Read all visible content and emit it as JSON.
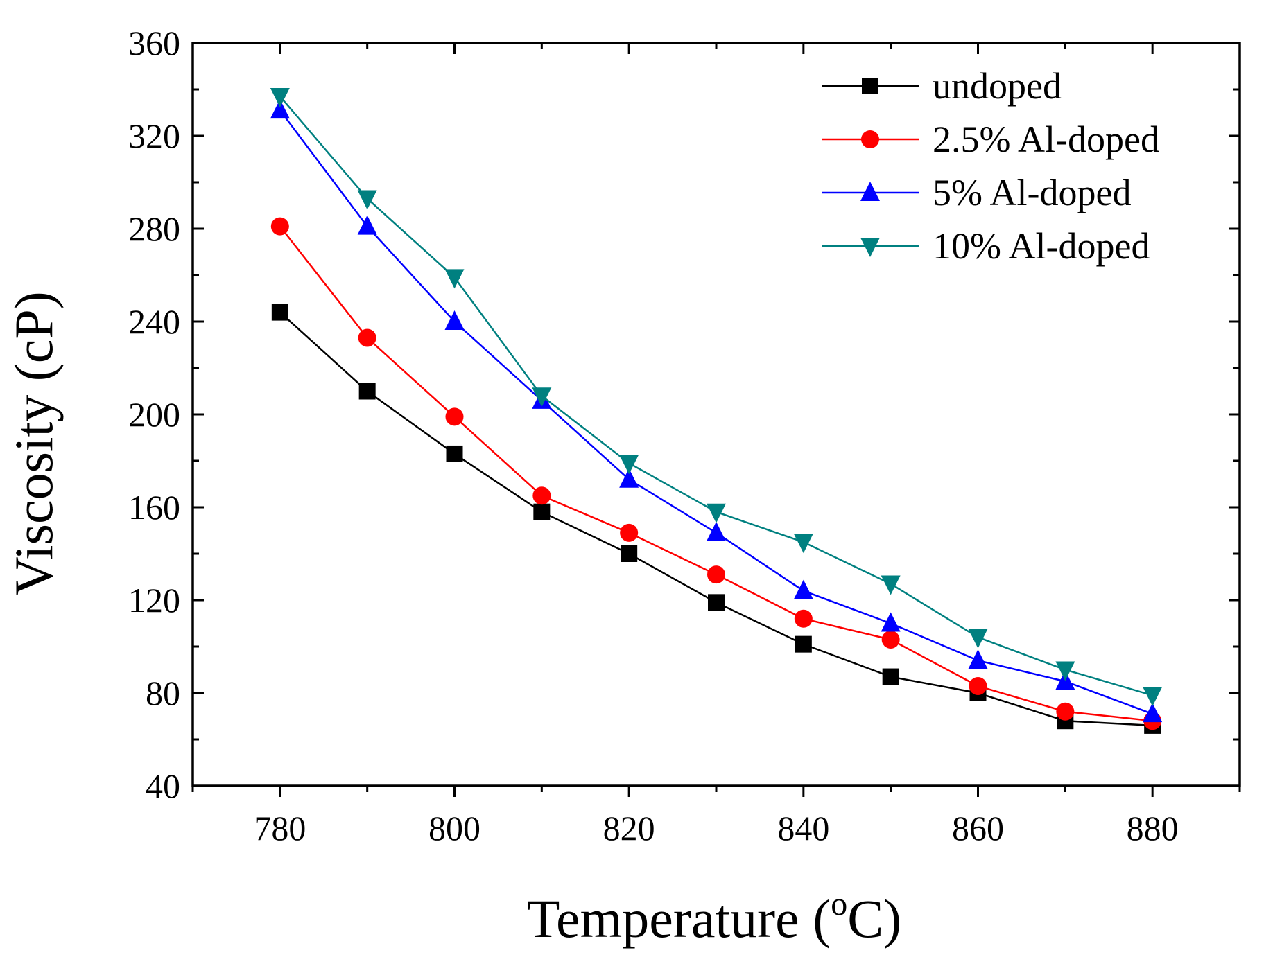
{
  "chart_data": {
    "type": "line",
    "title": "",
    "xlabel": "Temperature (",
    "xlabel_sup": "o",
    "xlabel_unit": "C)",
    "ylabel": "Viscosity (cP)",
    "xlim": [
      770,
      890
    ],
    "ylim": [
      40,
      360
    ],
    "x_ticks": [
      "780",
      "800",
      "820",
      "840",
      "860",
      "880"
    ],
    "y_ticks": [
      "40",
      "80",
      "120",
      "160",
      "200",
      "240",
      "280",
      "320",
      "360"
    ],
    "x": [
      780,
      790,
      800,
      810,
      820,
      830,
      840,
      850,
      860,
      870,
      880
    ],
    "legend_position": "top-right",
    "series": [
      {
        "name": "undoped",
        "color": "#000000",
        "marker": "square",
        "values": [
          244,
          210,
          183,
          158,
          140,
          119,
          101,
          87,
          80,
          68,
          66
        ]
      },
      {
        "name": "2.5% Al-doped",
        "color": "#ff0000",
        "marker": "circle",
        "values": [
          281,
          233,
          199,
          165,
          149,
          131,
          112,
          103,
          83,
          72,
          68
        ]
      },
      {
        "name": "5% Al-doped",
        "color": "#0000ff",
        "marker": "triangle-up",
        "values": [
          331,
          281,
          240,
          206,
          172,
          149,
          124,
          110,
          94,
          85,
          71
        ]
      },
      {
        "name": "10% Al-doped",
        "color": "#008080",
        "marker": "triangle-down",
        "values": [
          337,
          293,
          259,
          208,
          179,
          158,
          145,
          127,
          104,
          90,
          79
        ]
      }
    ]
  }
}
